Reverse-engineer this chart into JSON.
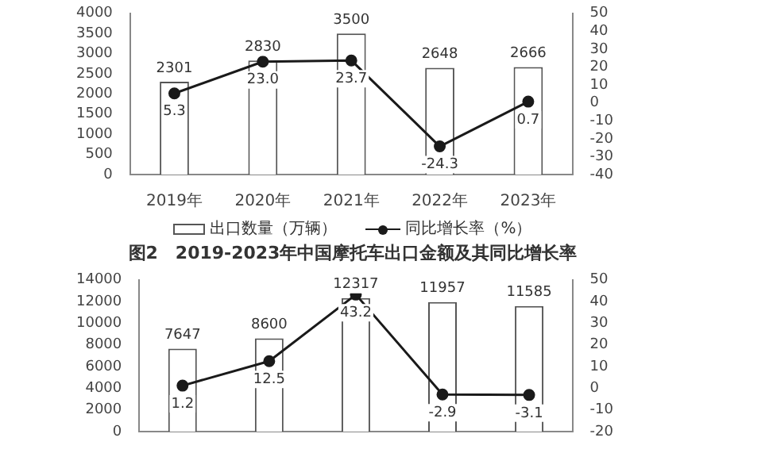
{
  "chart_data": [
    {
      "type": "bar",
      "categories": [
        "2019年",
        "2020年",
        "2021年",
        "2022年",
        "2023年"
      ],
      "series": [
        {
          "name": "出口数量（万辆）",
          "color": "#ffffff",
          "values": [
            2301,
            2830,
            3500,
            2648,
            2666
          ]
        },
        {
          "name": "同比增长率（%）",
          "type": "line",
          "axis": "y2",
          "color": "#1a1a1a",
          "values": [
            5.3,
            23.0,
            23.7,
            -24.3,
            0.7
          ],
          "value_labels": [
            "5.3",
            "23.0",
            "23.7",
            "-24.3",
            "0.7"
          ]
        }
      ],
      "ylim": [
        0,
        4000
      ],
      "yticks": [
        0,
        500,
        1000,
        1500,
        2000,
        2500,
        3000,
        3500,
        4000
      ],
      "y2lim": [
        -40,
        50
      ],
      "y2ticks": [
        -40,
        -30,
        -20,
        -10,
        0,
        10,
        20,
        30,
        40,
        50
      ],
      "data_labels": true,
      "grid": false,
      "legend": "bottom",
      "marker": "circle",
      "line_style": "solid"
    },
    {
      "type": "bar",
      "title": "图2　2019-2023年中国摩托车出口金额及其同比增长率",
      "categories": [
        null,
        null,
        null,
        null,
        null
      ],
      "series": [
        {
          "color": "#ffffff",
          "values": [
            7647,
            8600,
            12317,
            11957,
            11585
          ]
        },
        {
          "type": "line",
          "axis": "y2",
          "color": "#1a1a1a",
          "values": [
            1.2,
            12.5,
            43.2,
            -2.9,
            -3.1
          ]
        }
      ],
      "ylim": [
        0,
        14000
      ],
      "yticks": [
        0,
        2000,
        4000,
        6000,
        8000,
        10000,
        12000,
        14000
      ],
      "y2lim": [
        -20,
        50
      ],
      "y2ticks": [
        -20,
        -10,
        0,
        10,
        20,
        30,
        40,
        50
      ],
      "data_labels": true,
      "grid": false,
      "legend": false,
      "marker": "circle",
      "line_style": "solid"
    }
  ]
}
